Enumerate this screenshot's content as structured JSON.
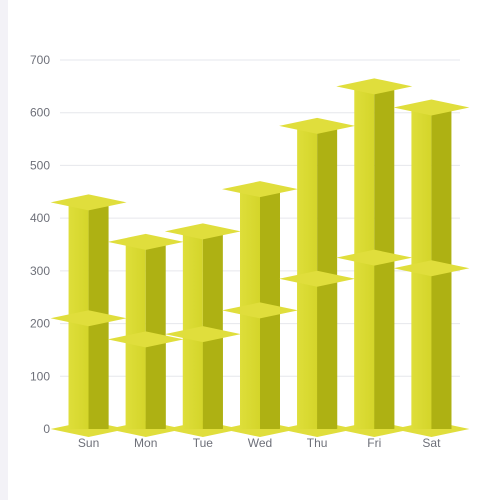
{
  "chart_data": {
    "type": "bar",
    "categories": [
      "Sun",
      "Mon",
      "Tue",
      "Wed",
      "Thu",
      "Fri",
      "Sat"
    ],
    "series": [
      {
        "values": [
          210,
          170,
          180,
          225,
          285,
          325,
          305
        ]
      },
      {
        "values": [
          430,
          355,
          375,
          455,
          575,
          650,
          610
        ]
      }
    ],
    "ylim": [
      0,
      700
    ],
    "yticks": [
      0,
      100,
      200,
      300,
      400,
      500,
      600,
      700
    ],
    "grid": true,
    "style": "3d-pillar",
    "colors": {
      "front": "#d4d52a",
      "side": "#aeb113",
      "top": "#e0de3c",
      "grid": "#e6e7ec",
      "tick_text": "#6e7079"
    }
  }
}
